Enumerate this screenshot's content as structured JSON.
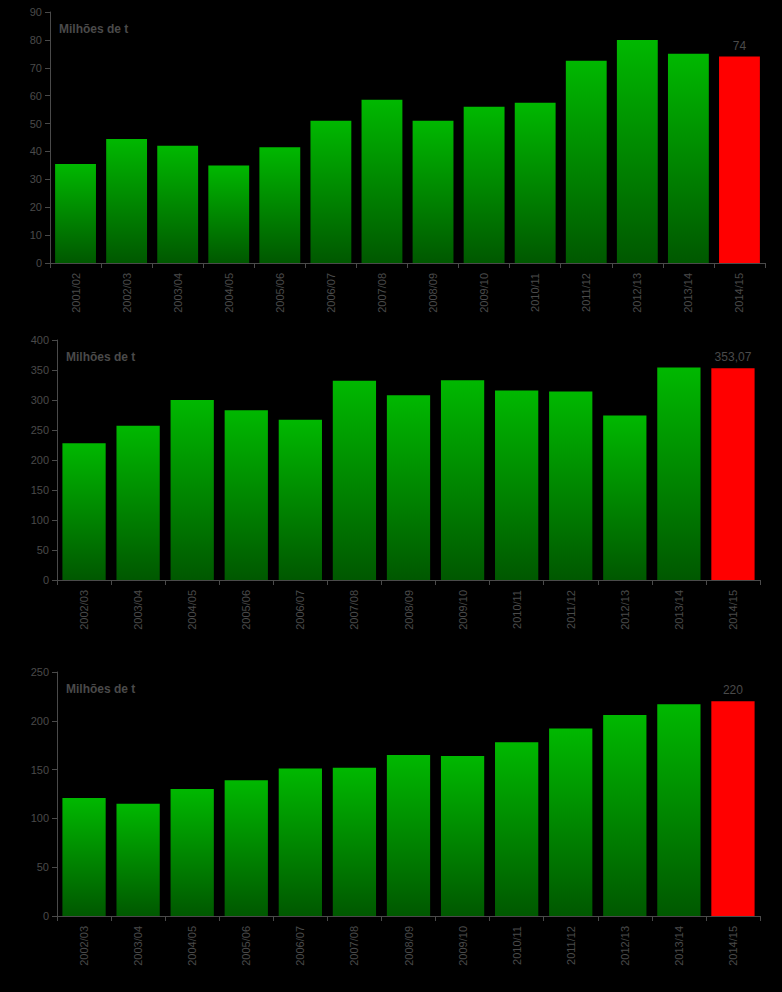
{
  "chart_data": [
    {
      "type": "bar",
      "title": "Milhões de t",
      "categories": [
        "2001/02",
        "2002/03",
        "2003/04",
        "2004/05",
        "2005/06",
        "2006/07",
        "2007/08",
        "2008/09",
        "2009/10",
        "2010/11",
        "2011/12",
        "2012/13",
        "2013/14",
        "2014/15"
      ],
      "values": [
        35.5,
        44.5,
        42,
        35,
        41.5,
        51,
        58.5,
        51,
        56,
        57.5,
        72.5,
        80,
        75,
        74
      ],
      "value_labels": [
        null,
        null,
        null,
        null,
        null,
        null,
        null,
        null,
        null,
        null,
        null,
        null,
        null,
        "74"
      ],
      "colors": [
        "#00a000",
        "#00a000",
        "#00a000",
        "#00a000",
        "#00a000",
        "#00a000",
        "#00a000",
        "#00a000",
        "#00a000",
        "#00a000",
        "#00a000",
        "#00a000",
        "#00a000",
        "#ff0000"
      ],
      "ylim": [
        0,
        90
      ],
      "yticks": [
        0,
        10,
        20,
        30,
        40,
        50,
        60,
        70,
        80,
        90
      ]
    },
    {
      "type": "bar",
      "title": "Milhões de t",
      "categories": [
        "2002/03",
        "2003/04",
        "2004/05",
        "2005/06",
        "2006/07",
        "2007/08",
        "2008/09",
        "2009/10",
        "2010/11",
        "2011/12",
        "2012/13",
        "2013/14",
        "2014/15"
      ],
      "values": [
        228,
        257,
        300,
        283,
        267,
        332,
        308,
        333,
        316,
        314,
        274,
        354,
        353.07
      ],
      "value_labels": [
        null,
        null,
        null,
        null,
        null,
        null,
        null,
        null,
        null,
        null,
        null,
        null,
        "353,07"
      ],
      "colors": [
        "#00a000",
        "#00a000",
        "#00a000",
        "#00a000",
        "#00a000",
        "#00a000",
        "#00a000",
        "#00a000",
        "#00a000",
        "#00a000",
        "#00a000",
        "#00a000",
        "#ff0000"
      ],
      "ylim": [
        0,
        400
      ],
      "yticks": [
        0,
        50,
        100,
        150,
        200,
        250,
        300,
        350,
        400
      ]
    },
    {
      "type": "bar",
      "title": "Milhões de t",
      "categories": [
        "2002/03",
        "2003/04",
        "2004/05",
        "2005/06",
        "2006/07",
        "2007/08",
        "2008/09",
        "2009/10",
        "2010/11",
        "2011/12",
        "2012/13",
        "2013/14",
        "2014/15"
      ],
      "values": [
        121,
        115,
        130,
        139,
        151,
        152,
        165,
        164,
        178,
        192,
        206,
        217,
        220
      ],
      "value_labels": [
        null,
        null,
        null,
        null,
        null,
        null,
        null,
        null,
        null,
        null,
        null,
        null,
        "220"
      ],
      "colors": [
        "#00a000",
        "#00a000",
        "#00a000",
        "#00a000",
        "#00a000",
        "#00a000",
        "#00a000",
        "#00a000",
        "#00a000",
        "#00a000",
        "#00a000",
        "#00a000",
        "#ff0000"
      ],
      "ylim": [
        0,
        250
      ],
      "yticks": [
        0,
        50,
        100,
        150,
        200,
        250
      ]
    }
  ]
}
